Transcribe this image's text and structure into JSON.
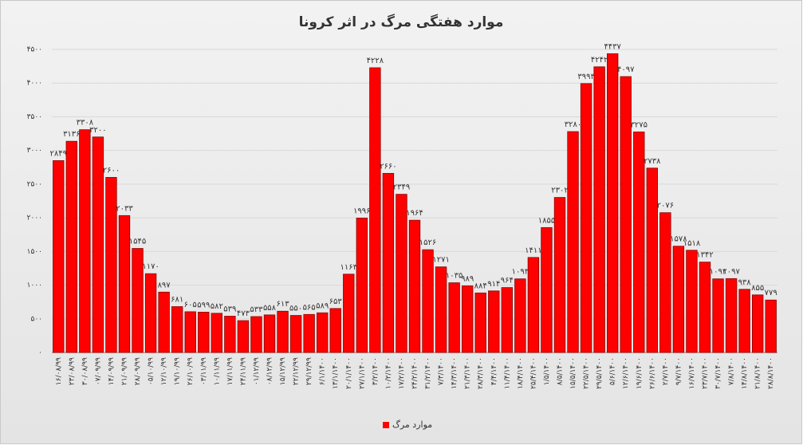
{
  "chart_data": {
    "type": "bar",
    "title": "موارد هفتگی مرگ در اثر کرونا",
    "categories": [
      "۱۶/۰۸/۹۹",
      "۲۳/۰۸/۹۹",
      "۳۰/۰۸/۹۹",
      "۰۷/۰۹/۹۹",
      "۱۴/۰۹/۹۹",
      "۲۱/۰۹/۹۹",
      "۲۸/۰۹/۹۹",
      "۰۵/۱۰/۹۹",
      "۱۲/۱۰/۹۹",
      "۱۹/۱۰/۹۹",
      "۲۶/۱۰/۹۹",
      "۰۳/۱۱/۹۹",
      "۱۰/۱۱/۹۹",
      "۱۷/۱۱/۹۹",
      "۲۴/۱۱/۹۹",
      "۰۱/۱۲/۹۹",
      "۰۸/۱۲/۹۹",
      "۱۵/۱۲/۹۹",
      "۲۲/۱۲/۹۹",
      "۲۹/۱۲/۹۹",
      "۶/۱/۱۴۰۰",
      "۱۳/۱/۱۴۰۰",
      "۲۰/۱/۱۴۰۰",
      "۲۷/۱/۱۴۰۰",
      "۳/۲/۱۴۰۰",
      "۱۰/۲/۱۴۰۰",
      "۱۷/۲/۱۴۰۰",
      "۲۴/۲/۱۴۰۰",
      "۳۱/۲/۱۴۰۰",
      "۷/۳/۱۴۰۰",
      "۱۴/۳/۱۴۰۰",
      "۲۱/۳/۱۴۰۰",
      "۲۸/۳/۱۴۰۰",
      "۴/۴/۱۴۰۰",
      "۱۱/۴/۱۴۰۰",
      "۱۸/۴/۱۴۰۰",
      "۲۵/۴/۱۴۰۰",
      "۱/۵/۱۴۰۰",
      "۸/۵/۱۴۰۰",
      "۱۵/۵/۱۴۰۰",
      "۲۲/۵/۱۴۰۰",
      "۲۹/۵/۱۴۰۰",
      "۵/۶/۱۴۰۰",
      "۱۲/۶/۱۴۰۰",
      "۱۹/۶/۱۴۰۰",
      "۲۶/۶/۱۴۰۰",
      "۲/۷/۱۴۰۰",
      "۹/۷/۱۴۰۰",
      "۱۶/۷/۱۴۰۰",
      "۲۳/۷/۱۴۰۰",
      "۳۰/۷/۱۴۰۰",
      "۷/۸/۱۴۰۰",
      "۱۴/۸/۱۴۰۰",
      "۲۱/۸/۱۴۰۰",
      "۲۸/۸/۱۴۰۰"
    ],
    "series": [
      {
        "name": "موارد مرگ",
        "color": "#ff0000",
        "values": [
          2849,
          3136,
          3308,
          3200,
          2600,
          2033,
          1545,
          1170,
          897,
          681,
          605,
          599,
          582,
          539,
          473,
          533,
          558,
          613,
          550,
          565,
          589,
          653,
          1163,
          1996,
          4228,
          2660,
          2349,
          1964,
          1526,
          1271,
          1035,
          989,
          884,
          914,
          964,
          1093,
          1411,
          1855,
          2302,
          3280,
          3993,
          4242,
          4437,
          4097,
          3275,
          2738,
          2076,
          1578,
          1518,
          1342,
          1093,
          1097,
          938,
          855,
          779
        ],
        "value_labels": [
          "۲۸۴۹",
          "۳۱۳۶",
          "۳۳۰۸",
          "۳۲۰۰",
          "۲۶۰۰",
          "۲۰۳۳",
          "۱۵۴۵",
          "۱۱۷۰",
          "۸۹۷",
          "۶۸۱",
          "۶۰۵",
          "۵۹۹",
          "۵۸۲",
          "۵۳۹",
          "۴۷۳",
          "۵۳۳",
          "۵۵۸",
          "۶۱۳",
          "۵۵۰",
          "۵۶۵",
          "۵۸۹",
          "۶۵۳",
          "۱۱۶۳",
          "۱۹۹۶",
          "۴۲۲۸",
          "۲۶۶۰",
          "۲۳۴۹",
          "۱۹۶۴",
          "۱۵۲۶",
          "۱۲۷۱",
          "۱۰۳۵",
          "۹۸۹",
          "۸۸۴",
          "۹۱۴",
          "۹۶۴",
          "۱۰۹۳",
          "۱۴۱۱",
          "۱۸۵۵",
          "۲۳۰۲",
          "۳۲۸۰",
          "۳۹۹۳",
          "۴۲۴۲",
          "۴۴۳۷",
          "۴۰۹۷",
          "۳۲۷۵",
          "۲۷۳۸",
          "۲۰۷۶",
          "۱۵۷۸",
          "۱۵۱۸",
          "۱۳۴۲",
          "۱۰۹۳",
          "۱۰۹۷",
          "۹۳۸",
          "۸۵۵",
          "۷۷۹"
        ]
      }
    ],
    "ylim": [
      0,
      4500
    ],
    "yticks": [
      {
        "value": 0,
        "label": "۰"
      },
      {
        "value": 500,
        "label": "۵۰۰"
      },
      {
        "value": 1000,
        "label": "۱۰۰۰"
      },
      {
        "value": 1500,
        "label": "۱۵۰۰"
      },
      {
        "value": 2000,
        "label": "۲۰۰۰"
      },
      {
        "value": 2500,
        "label": "۲۵۰۰"
      },
      {
        "value": 3000,
        "label": "۳۰۰۰"
      },
      {
        "value": 3500,
        "label": "۳۵۰۰"
      },
      {
        "value": 4000,
        "label": "۴۰۰۰"
      },
      {
        "value": 4500,
        "label": "۴۵۰۰"
      }
    ],
    "grid": true,
    "legend": "bottom"
  }
}
